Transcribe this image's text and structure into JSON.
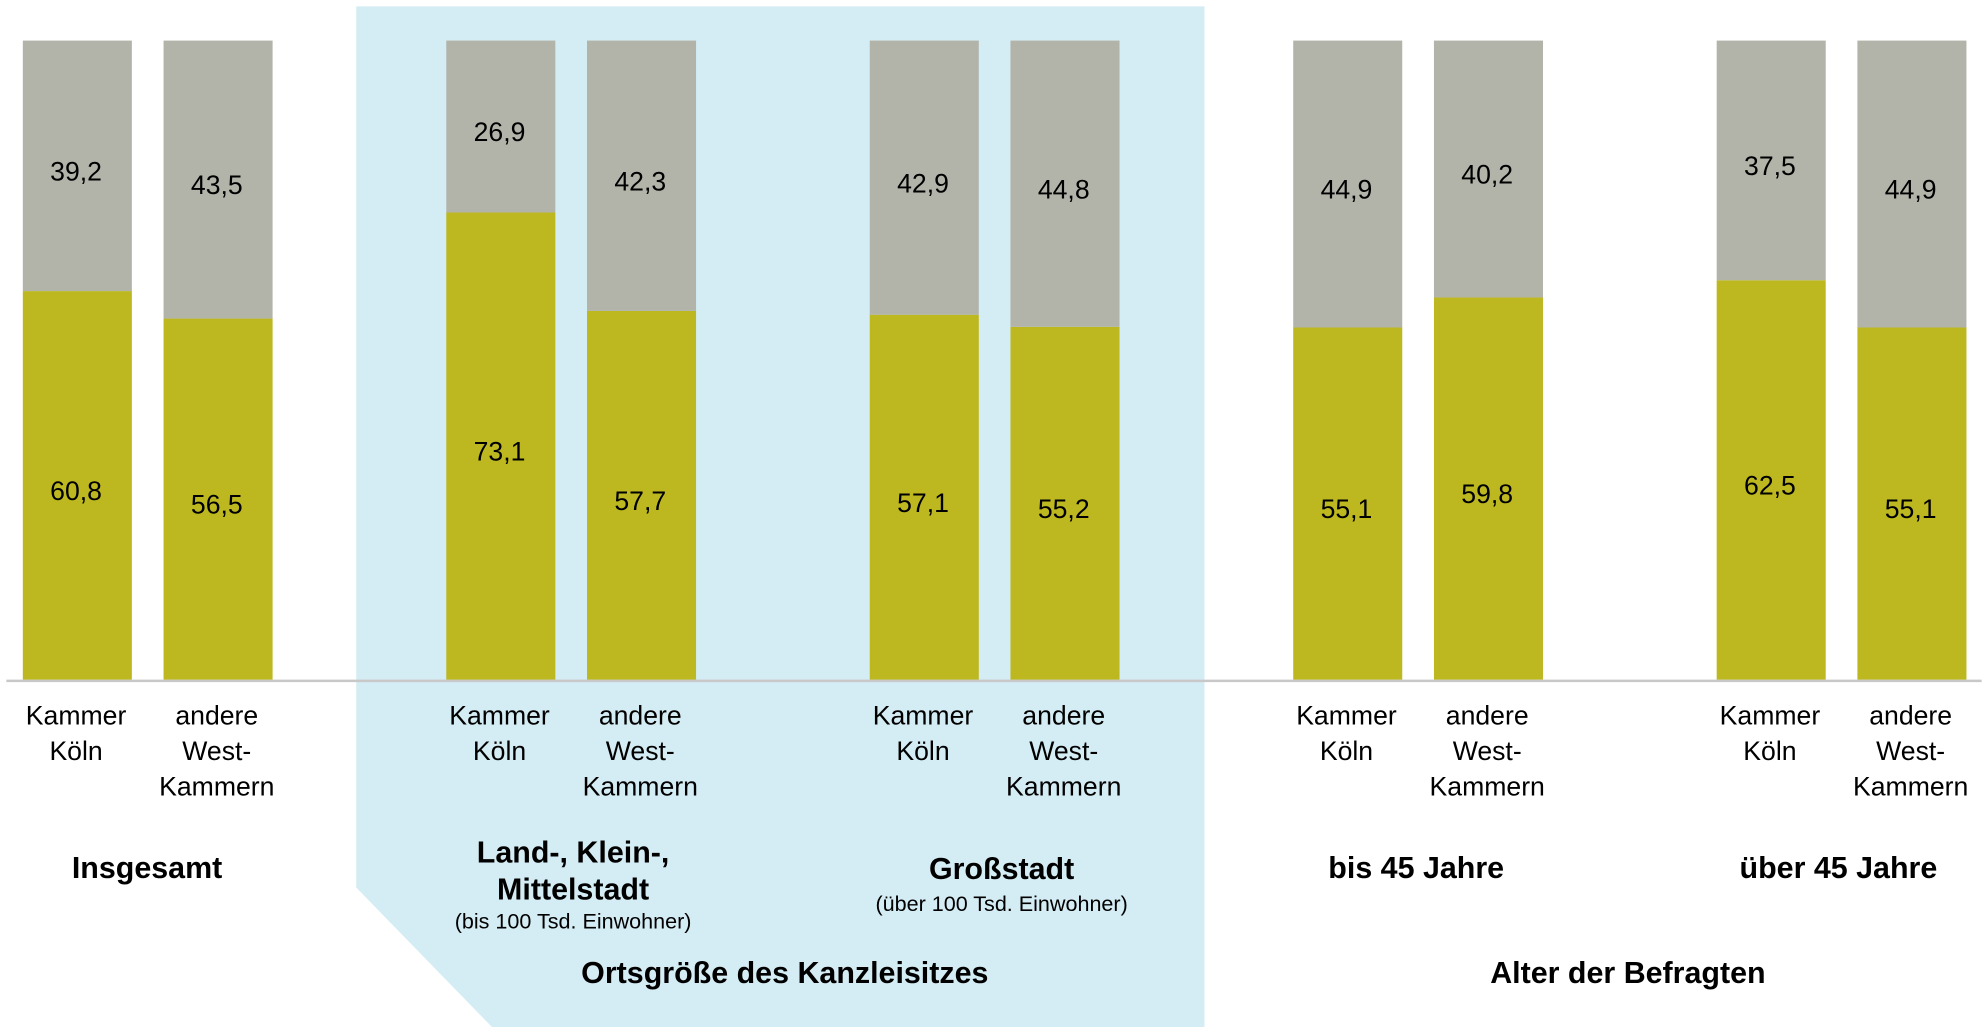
{
  "chart_data": {
    "type": "stacked-bar",
    "ylim": [
      0,
      100
    ],
    "categories": [
      [
        "Kammer",
        "Köln"
      ],
      [
        "andere",
        "West-",
        "Kammern"
      ],
      [
        "Kammer",
        "Köln"
      ],
      [
        "andere",
        "West-",
        "Kammern"
      ],
      [
        "Kammer",
        "Köln"
      ],
      [
        "andere",
        "West-",
        "Kammern"
      ],
      [
        "Kammer",
        "Köln"
      ],
      [
        "andere",
        "West-",
        "Kammern"
      ],
      [
        "Kammer",
        "Köln"
      ],
      [
        "andere",
        "West-",
        "Kammern"
      ]
    ],
    "series": [
      {
        "color": "#bdb720",
        "values": [
          60.8,
          56.5,
          73.1,
          57.7,
          57.1,
          55.2,
          55.1,
          59.8,
          62.5,
          55.1
        ],
        "value_labels": [
          "60,8",
          "56,5",
          "73,1",
          "57,7",
          "57,1",
          "55,2",
          "55,1",
          "59,8",
          "62,5",
          "55,1"
        ]
      },
      {
        "color": "#b2b3a9",
        "values": [
          39.2,
          43.5,
          26.9,
          42.3,
          42.9,
          44.8,
          44.9,
          40.2,
          37.5,
          44.9
        ],
        "value_labels": [
          "39,2",
          "43,5",
          "26,9",
          "42,3",
          "42,9",
          "44,8",
          "44,9",
          "40,2",
          "37,5",
          "44,9"
        ]
      }
    ],
    "groups": [
      {
        "label": [
          "Insgesamt"
        ]
      },
      {
        "label": [
          "Land-, Klein-,",
          "Mittelstadt"
        ],
        "note": "(bis 100 Tsd. Einwohner)"
      },
      {
        "label": [
          "Großstadt"
        ],
        "note": "(über 100 Tsd. Einwohner)"
      },
      {
        "label": [
          "bis 45 Jahre"
        ]
      },
      {
        "label": [
          "über 45 Jahre"
        ]
      }
    ],
    "supergroups": [
      "Ortsgröße des Kanzleisitzes",
      "Alter der Befragten"
    ]
  }
}
